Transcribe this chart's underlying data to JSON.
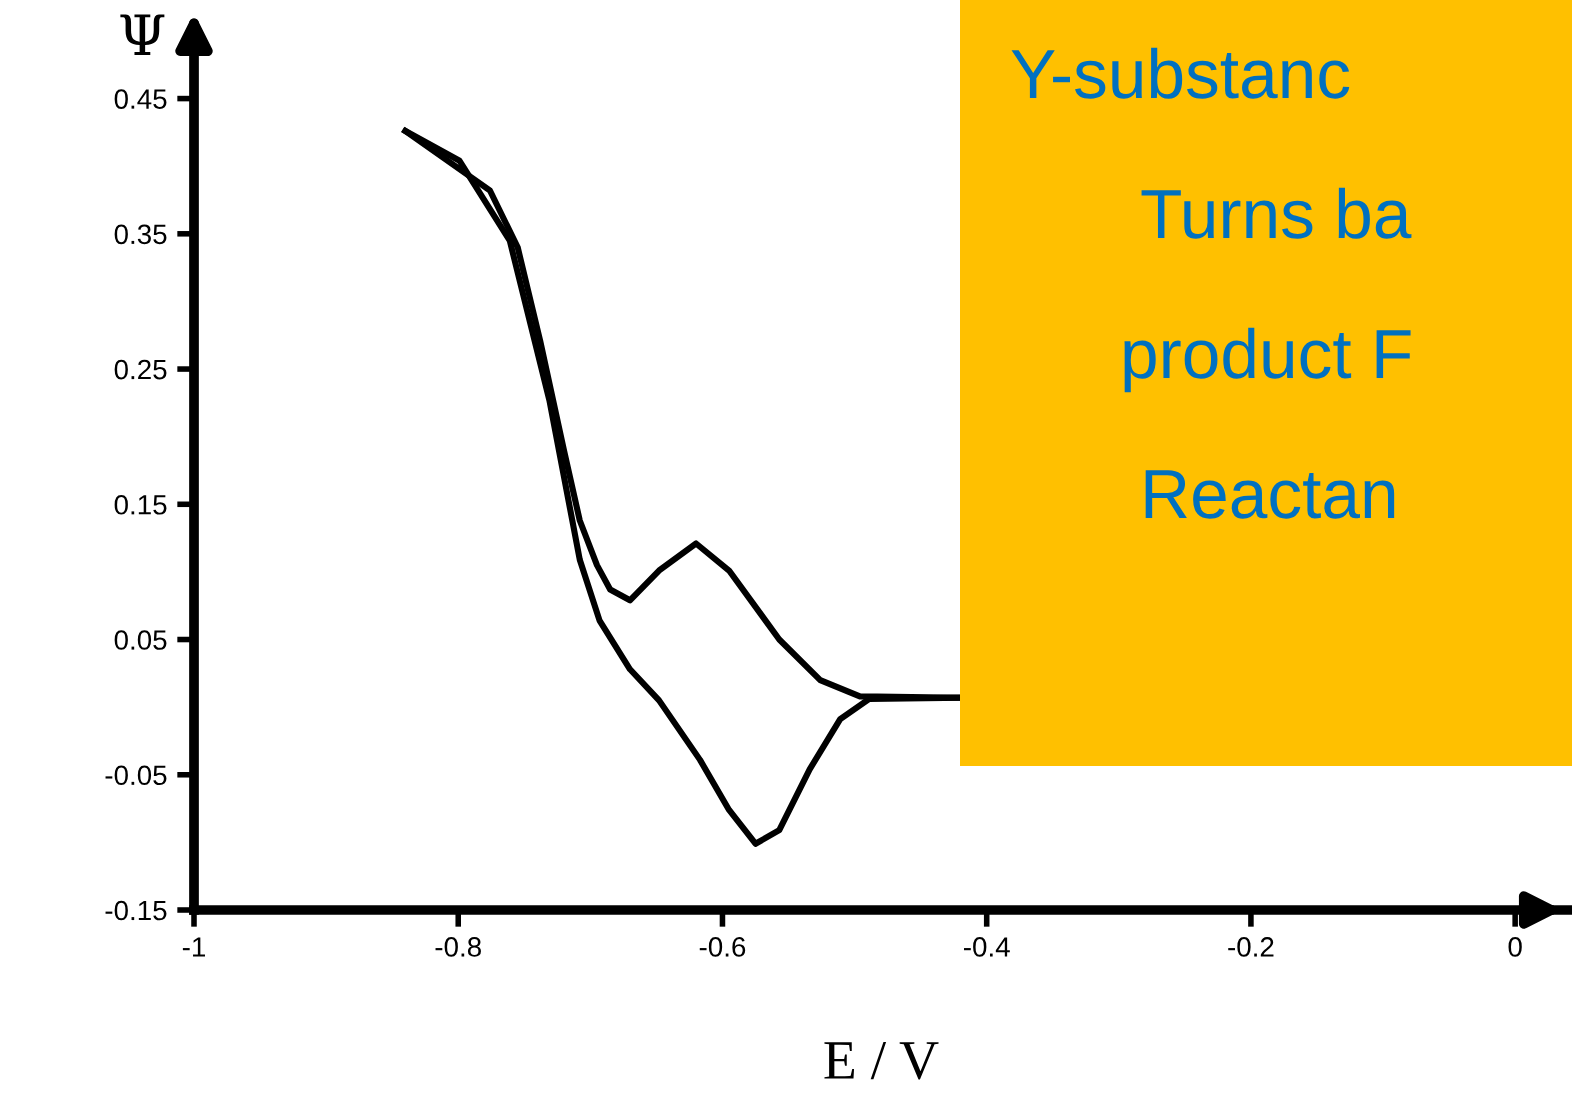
{
  "chart_data": {
    "type": "line",
    "xlabel": "E / V",
    "ylabel": "Ψ",
    "xlim": [
      -1,
      0.04
    ],
    "ylim": [
      -0.15,
      0.48
    ],
    "xticks": [
      -1,
      -0.8,
      -0.6,
      -0.4,
      -0.2,
      0
    ],
    "yticks": [
      -0.15,
      -0.05,
      0.05,
      0.15,
      0.25,
      0.35,
      0.45
    ],
    "grid": false,
    "marker": "none",
    "line_style": "solid",
    "series": [
      {
        "color": "#000000",
        "x": [
          -0.84,
          -0.776,
          -0.755,
          -0.738,
          -0.72,
          -0.708,
          -0.695,
          -0.685,
          -0.67,
          -0.648,
          -0.62,
          -0.595,
          -0.557,
          -0.526,
          -0.496,
          -0.42
        ],
        "values": [
          0.426,
          0.382,
          0.34,
          0.271,
          0.19,
          0.138,
          0.105,
          0.087,
          0.079,
          0.101,
          0.121,
          0.101,
          0.05,
          0.02,
          0.008,
          0.007
        ]
      },
      {
        "color": "#000000",
        "x": [
          -0.84,
          -0.799,
          -0.761,
          -0.731,
          -0.708,
          -0.693,
          -0.67,
          -0.648,
          -0.617,
          -0.595,
          -0.575,
          -0.557,
          -0.534,
          -0.511,
          -0.489,
          -0.42
        ],
        "values": [
          0.426,
          0.404,
          0.345,
          0.227,
          0.109,
          0.064,
          0.028,
          0.005,
          -0.039,
          -0.076,
          -0.101,
          -0.091,
          -0.046,
          -0.009,
          0.006,
          0.007
        ]
      }
    ],
    "annotations": [
      "Y-substanc",
      "Turns ba",
      "product F",
      "Reactan"
    ]
  }
}
